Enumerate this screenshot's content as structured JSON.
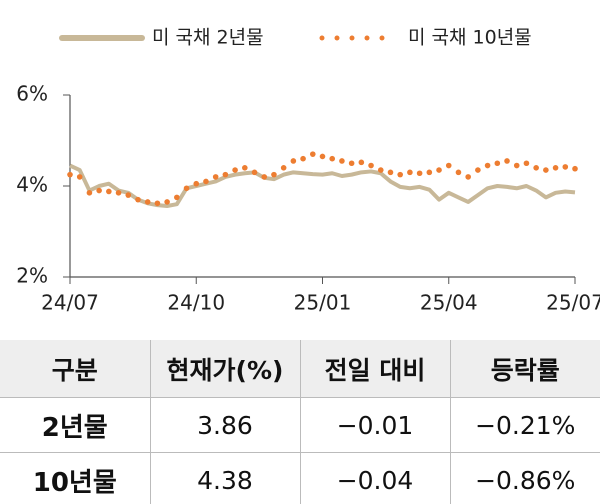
{
  "chart_data": {
    "type": "line",
    "categories": [
      "24/07",
      null,
      null,
      null,
      null,
      null,
      null,
      null,
      null,
      null,
      null,
      null,
      null,
      "24/10",
      null,
      null,
      null,
      null,
      null,
      null,
      null,
      null,
      null,
      null,
      null,
      null,
      "25/01",
      null,
      null,
      null,
      null,
      null,
      null,
      null,
      null,
      null,
      null,
      null,
      null,
      "25/04",
      null,
      null,
      null,
      null,
      null,
      null,
      null,
      null,
      null,
      null,
      null,
      null,
      "25/07"
    ],
    "series": [
      {
        "name": "미 국채 2년물",
        "color": "#c8b898",
        "line_style": "solid",
        "values": [
          4.45,
          4.35,
          3.9,
          4.0,
          4.05,
          3.9,
          3.85,
          3.7,
          3.62,
          3.58,
          3.56,
          3.6,
          3.95,
          4.0,
          4.05,
          4.1,
          4.2,
          4.25,
          4.28,
          4.3,
          4.18,
          4.15,
          4.25,
          4.3,
          4.28,
          4.26,
          4.25,
          4.28,
          4.22,
          4.25,
          4.3,
          4.32,
          4.28,
          4.1,
          3.98,
          3.95,
          3.98,
          3.92,
          3.7,
          3.85,
          3.75,
          3.65,
          3.8,
          3.95,
          4.0,
          3.98,
          3.95,
          4.0,
          3.9,
          3.75,
          3.85,
          3.88,
          3.86
        ]
      },
      {
        "name": "미 국채 10년물",
        "color": "#ed7d31",
        "line_style": "dotted",
        "values": [
          4.25,
          4.2,
          3.85,
          3.9,
          3.88,
          3.85,
          3.8,
          3.7,
          3.65,
          3.62,
          3.65,
          3.75,
          3.95,
          4.05,
          4.1,
          4.2,
          4.25,
          4.35,
          4.4,
          4.3,
          4.2,
          4.25,
          4.4,
          4.55,
          4.6,
          4.7,
          4.65,
          4.6,
          4.55,
          4.5,
          4.52,
          4.45,
          4.35,
          4.3,
          4.25,
          4.3,
          4.28,
          4.3,
          4.35,
          4.45,
          4.3,
          4.2,
          4.35,
          4.45,
          4.5,
          4.55,
          4.45,
          4.5,
          4.4,
          4.35,
          4.4,
          4.42,
          4.38
        ]
      }
    ],
    "ylim": [
      2,
      6
    ],
    "yticks": [
      {
        "value": 2,
        "label": "2%"
      },
      {
        "value": 4,
        "label": "4%"
      },
      {
        "value": 6,
        "label": "6%"
      }
    ],
    "grid": false
  },
  "table": {
    "header": [
      "구분",
      "현재가(%)",
      "전일 대비",
      "등락률"
    ],
    "rows": [
      [
        "2년물",
        "3.86",
        "−0.01",
        "−0.21%"
      ],
      [
        "10년물",
        "4.38",
        "−0.04",
        "−0.86%"
      ]
    ]
  }
}
